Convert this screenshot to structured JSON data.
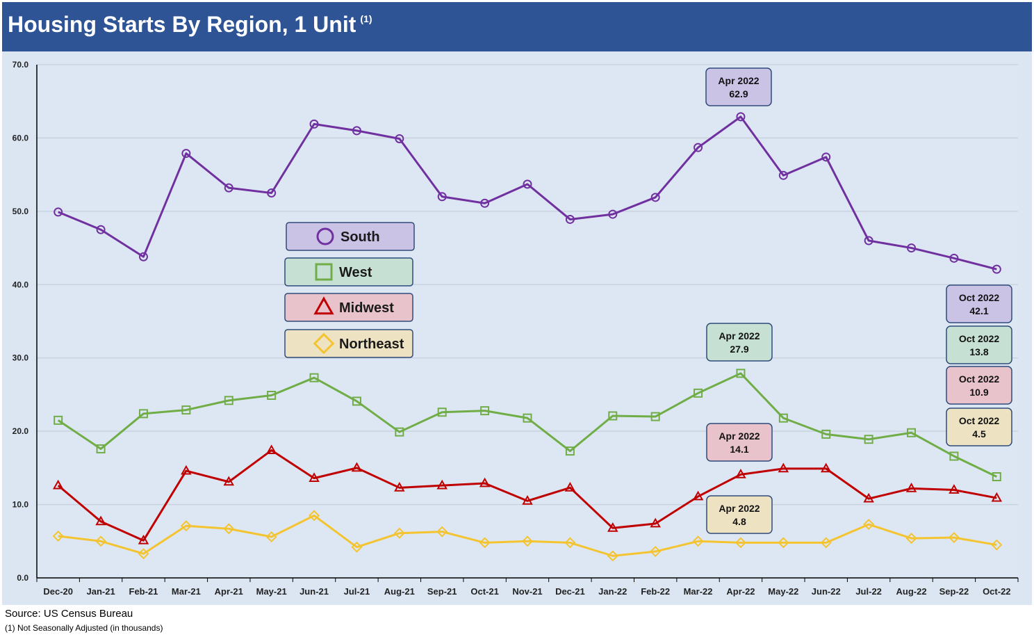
{
  "header": {
    "title": "Housing Starts By Region, 1 Unit",
    "title_note": "(1)"
  },
  "footer": {
    "source": "Source: US Census Bureau",
    "footnote": "(1) Not Seasonally Adjusted (in thousands)"
  },
  "colors": {
    "title_bar": "#2F5496",
    "plot_bg": "#DCE6F2",
    "South": "#7030A0",
    "West": "#70AD47",
    "Midwest": "#C00000",
    "Northeast": "#F4C430"
  },
  "chart_data": {
    "type": "line",
    "title": "Housing Starts By Region, 1 Unit",
    "categories": [
      "Dec-20",
      "Jan-21",
      "Feb-21",
      "Mar-21",
      "Apr-21",
      "May-21",
      "Jun-21",
      "Jul-21",
      "Aug-21",
      "Sep-21",
      "Oct-21",
      "Nov-21",
      "Dec-21",
      "Jan-22",
      "Feb-22",
      "Mar-22",
      "Apr-22",
      "May-22",
      "Jun-22",
      "Jul-22",
      "Aug-22",
      "Sep-22",
      "Oct-22"
    ],
    "ylim": [
      0,
      70
    ],
    "yticks": [
      "0.0",
      "10.0",
      "20.0",
      "30.0",
      "40.0",
      "50.0",
      "60.0",
      "70.0"
    ],
    "grid": true,
    "legend_position": "upper-left-center",
    "series": [
      {
        "name": "South",
        "marker": "circle",
        "values": [
          49.9,
          47.5,
          43.8,
          57.9,
          53.2,
          52.5,
          61.9,
          61.0,
          59.9,
          52.0,
          51.1,
          53.7,
          48.9,
          49.6,
          51.9,
          58.7,
          62.9,
          54.9,
          57.4,
          46.0,
          45.0,
          43.6,
          42.1
        ]
      },
      {
        "name": "West",
        "marker": "square",
        "values": [
          21.5,
          17.6,
          22.4,
          22.9,
          24.2,
          24.9,
          27.3,
          24.1,
          19.9,
          22.6,
          22.8,
          21.8,
          17.3,
          22.1,
          22.0,
          25.2,
          27.9,
          21.8,
          19.6,
          18.9,
          19.8,
          16.6,
          13.8
        ]
      },
      {
        "name": "Midwest",
        "marker": "triangle",
        "values": [
          12.6,
          7.7,
          5.1,
          14.6,
          13.1,
          17.4,
          13.6,
          15.0,
          12.3,
          12.6,
          12.9,
          10.5,
          12.3,
          6.8,
          7.4,
          11.1,
          14.1,
          14.9,
          14.9,
          10.8,
          12.2,
          12.0,
          10.9
        ]
      },
      {
        "name": "Northeast",
        "marker": "diamond",
        "values": [
          5.7,
          5.0,
          3.3,
          7.1,
          6.7,
          5.6,
          8.5,
          4.2,
          6.1,
          6.3,
          4.8,
          5.0,
          4.8,
          3.0,
          3.6,
          5.0,
          4.8,
          4.8,
          4.8,
          7.3,
          5.4,
          5.5,
          4.5
        ]
      }
    ],
    "annotations": [
      {
        "series": "South",
        "category": "Apr-22",
        "line1": "Apr 2022",
        "line2": "62.9"
      },
      {
        "series": "West",
        "category": "Apr-22",
        "line1": "Apr 2022",
        "line2": "27.9"
      },
      {
        "series": "Midwest",
        "category": "Apr-22",
        "line1": "Apr 2022",
        "line2": "14.1"
      },
      {
        "series": "Northeast",
        "category": "Apr-22",
        "line1": "Apr 2022",
        "line2": "4.8"
      },
      {
        "series": "South",
        "category": "Oct-22",
        "line1": "Oct 2022",
        "line2": "42.1"
      },
      {
        "series": "West",
        "category": "Oct-22",
        "line1": "Oct 2022",
        "line2": "13.8"
      },
      {
        "series": "Midwest",
        "category": "Oct-22",
        "line1": "Oct 2022",
        "line2": "10.9"
      },
      {
        "series": "Northeast",
        "category": "Oct-22",
        "line1": "Oct 2022",
        "line2": "4.5"
      }
    ]
  }
}
